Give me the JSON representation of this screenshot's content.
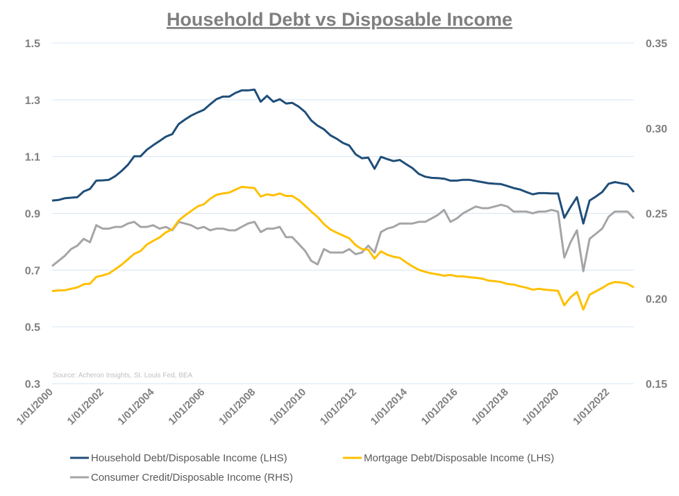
{
  "chart_data": {
    "type": "line",
    "title": "Household Debt vs Disposable Income",
    "source": "Source: Acheron Insights, St. Louis Fed, BEA",
    "x_tick_labels": [
      "1/01/2000",
      "1/01/2002",
      "1/01/2004",
      "1/01/2006",
      "1/01/2008",
      "1/01/2010",
      "1/01/2012",
      "1/01/2014",
      "1/01/2016",
      "1/01/2018",
      "1/01/2020",
      "1/01/2022"
    ],
    "x_tick_dates": [
      "2000-01-01",
      "2002-01-01",
      "2004-01-01",
      "2006-01-01",
      "2008-01-01",
      "2010-01-01",
      "2012-01-01",
      "2014-01-01",
      "2016-01-01",
      "2018-01-01",
      "2020-01-01",
      "2022-01-01"
    ],
    "xlim": [
      "2000-01-01",
      "2023-01-01"
    ],
    "y_left": {
      "ylim": [
        0.3,
        1.5
      ],
      "ticks": [
        "0.3",
        "0.5",
        "0.7",
        "0.9",
        "1.1",
        "1.3",
        "1.5"
      ]
    },
    "y_right": {
      "ylim": [
        0.15,
        0.35
      ],
      "ticks": [
        "0.15",
        "0.20",
        "0.25",
        "0.30",
        "0.35"
      ]
    },
    "grid": true,
    "legend_position": "bottom",
    "x": [
      "2000-01-01",
      "2000-04-01",
      "2000-07-01",
      "2000-10-01",
      "2001-01-01",
      "2001-04-01",
      "2001-07-01",
      "2001-10-01",
      "2002-01-01",
      "2002-04-01",
      "2002-07-01",
      "2002-10-01",
      "2003-01-01",
      "2003-04-01",
      "2003-07-01",
      "2003-10-01",
      "2004-01-01",
      "2004-04-01",
      "2004-07-01",
      "2004-10-01",
      "2005-01-01",
      "2005-04-01",
      "2005-07-01",
      "2005-10-01",
      "2006-01-01",
      "2006-04-01",
      "2006-07-01",
      "2006-10-01",
      "2007-01-01",
      "2007-04-01",
      "2007-07-01",
      "2007-10-01",
      "2008-01-01",
      "2008-04-01",
      "2008-07-01",
      "2008-10-01",
      "2009-01-01",
      "2009-04-01",
      "2009-07-01",
      "2009-10-01",
      "2010-01-01",
      "2010-04-01",
      "2010-07-01",
      "2010-10-01",
      "2011-01-01",
      "2011-04-01",
      "2011-07-01",
      "2011-10-01",
      "2012-01-01",
      "2012-04-01",
      "2012-07-01",
      "2012-10-01",
      "2013-01-01",
      "2013-04-01",
      "2013-07-01",
      "2013-10-01",
      "2014-01-01",
      "2014-04-01",
      "2014-07-01",
      "2014-10-01",
      "2015-01-01",
      "2015-04-01",
      "2015-07-01",
      "2015-10-01",
      "2016-01-01",
      "2016-04-01",
      "2016-07-01",
      "2016-10-01",
      "2017-01-01",
      "2017-04-01",
      "2017-07-01",
      "2017-10-01",
      "2018-01-01",
      "2018-04-01",
      "2018-07-01",
      "2018-10-01",
      "2019-01-01",
      "2019-04-01",
      "2019-07-01",
      "2019-10-01",
      "2020-01-01",
      "2020-04-01",
      "2020-07-01",
      "2020-10-01",
      "2021-01-01",
      "2021-04-01",
      "2021-07-01",
      "2021-10-01",
      "2022-01-01",
      "2022-04-01",
      "2022-07-01",
      "2022-10-01",
      "2023-01-01"
    ],
    "series": [
      {
        "name": "Household Debt/Disposable Income (LHS)",
        "axis": "left",
        "color": "#1f4e79",
        "values": [
          0.945,
          0.947,
          0.953,
          0.955,
          0.957,
          0.977,
          0.986,
          1.015,
          1.016,
          1.018,
          1.031,
          1.049,
          1.071,
          1.101,
          1.101,
          1.124,
          1.14,
          1.155,
          1.17,
          1.179,
          1.214,
          1.23,
          1.244,
          1.255,
          1.265,
          1.284,
          1.302,
          1.311,
          1.311,
          1.324,
          1.333,
          1.333,
          1.336,
          1.293,
          1.314,
          1.293,
          1.302,
          1.287,
          1.289,
          1.276,
          1.257,
          1.227,
          1.209,
          1.196,
          1.175,
          1.163,
          1.148,
          1.139,
          1.108,
          1.094,
          1.096,
          1.057,
          1.099,
          1.091,
          1.084,
          1.088,
          1.073,
          1.059,
          1.039,
          1.029,
          1.025,
          1.024,
          1.022,
          1.015,
          1.015,
          1.018,
          1.018,
          1.014,
          1.01,
          1.006,
          1.004,
          1.003,
          0.996,
          0.989,
          0.984,
          0.975,
          0.967,
          0.971,
          0.971,
          0.97,
          0.97,
          0.884,
          0.922,
          0.957,
          0.864,
          0.945,
          0.959,
          0.975,
          1.004,
          1.01,
          1.006,
          1.002,
          0.975
        ]
      },
      {
        "name": "Mortgage Debt/Disposable Income (LHS)",
        "axis": "left",
        "color": "#ffc000",
        "values": [
          0.626,
          0.628,
          0.629,
          0.634,
          0.639,
          0.65,
          0.652,
          0.676,
          0.681,
          0.688,
          0.703,
          0.719,
          0.738,
          0.757,
          0.767,
          0.79,
          0.803,
          0.815,
          0.833,
          0.843,
          0.874,
          0.892,
          0.908,
          0.924,
          0.932,
          0.951,
          0.965,
          0.97,
          0.973,
          0.983,
          0.993,
          0.991,
          0.989,
          0.959,
          0.967,
          0.963,
          0.97,
          0.961,
          0.961,
          0.947,
          0.927,
          0.906,
          0.887,
          0.862,
          0.843,
          0.832,
          0.822,
          0.812,
          0.788,
          0.774,
          0.772,
          0.741,
          0.766,
          0.754,
          0.747,
          0.743,
          0.727,
          0.713,
          0.701,
          0.694,
          0.688,
          0.685,
          0.68,
          0.683,
          0.678,
          0.678,
          0.675,
          0.673,
          0.67,
          0.663,
          0.661,
          0.658,
          0.651,
          0.649,
          0.643,
          0.638,
          0.631,
          0.634,
          0.631,
          0.629,
          0.627,
          0.576,
          0.604,
          0.623,
          0.561,
          0.613,
          0.625,
          0.637,
          0.651,
          0.658,
          0.656,
          0.652,
          0.639
        ]
      },
      {
        "name": "Consumer Credit/Disposable Income (RHS)",
        "axis": "right",
        "color": "#a5a5a5",
        "values": [
          0.219,
          0.222,
          0.225,
          0.229,
          0.231,
          0.235,
          0.233,
          0.243,
          0.241,
          0.241,
          0.242,
          0.242,
          0.244,
          0.245,
          0.242,
          0.242,
          0.243,
          0.241,
          0.242,
          0.24,
          0.245,
          0.244,
          0.243,
          0.241,
          0.242,
          0.24,
          0.241,
          0.241,
          0.24,
          0.24,
          0.242,
          0.244,
          0.245,
          0.239,
          0.241,
          0.241,
          0.242,
          0.236,
          0.236,
          0.232,
          0.228,
          0.222,
          0.22,
          0.229,
          0.227,
          0.227,
          0.227,
          0.229,
          0.226,
          0.227,
          0.231,
          0.227,
          0.239,
          0.241,
          0.242,
          0.244,
          0.244,
          0.244,
          0.245,
          0.245,
          0.247,
          0.249,
          0.252,
          0.245,
          0.247,
          0.25,
          0.252,
          0.254,
          0.253,
          0.253,
          0.254,
          0.255,
          0.254,
          0.251,
          0.251,
          0.251,
          0.25,
          0.251,
          0.251,
          0.252,
          0.251,
          0.224,
          0.233,
          0.24,
          0.216,
          0.235,
          0.238,
          0.241,
          0.248,
          0.251,
          0.251,
          0.251,
          0.247
        ]
      }
    ]
  }
}
